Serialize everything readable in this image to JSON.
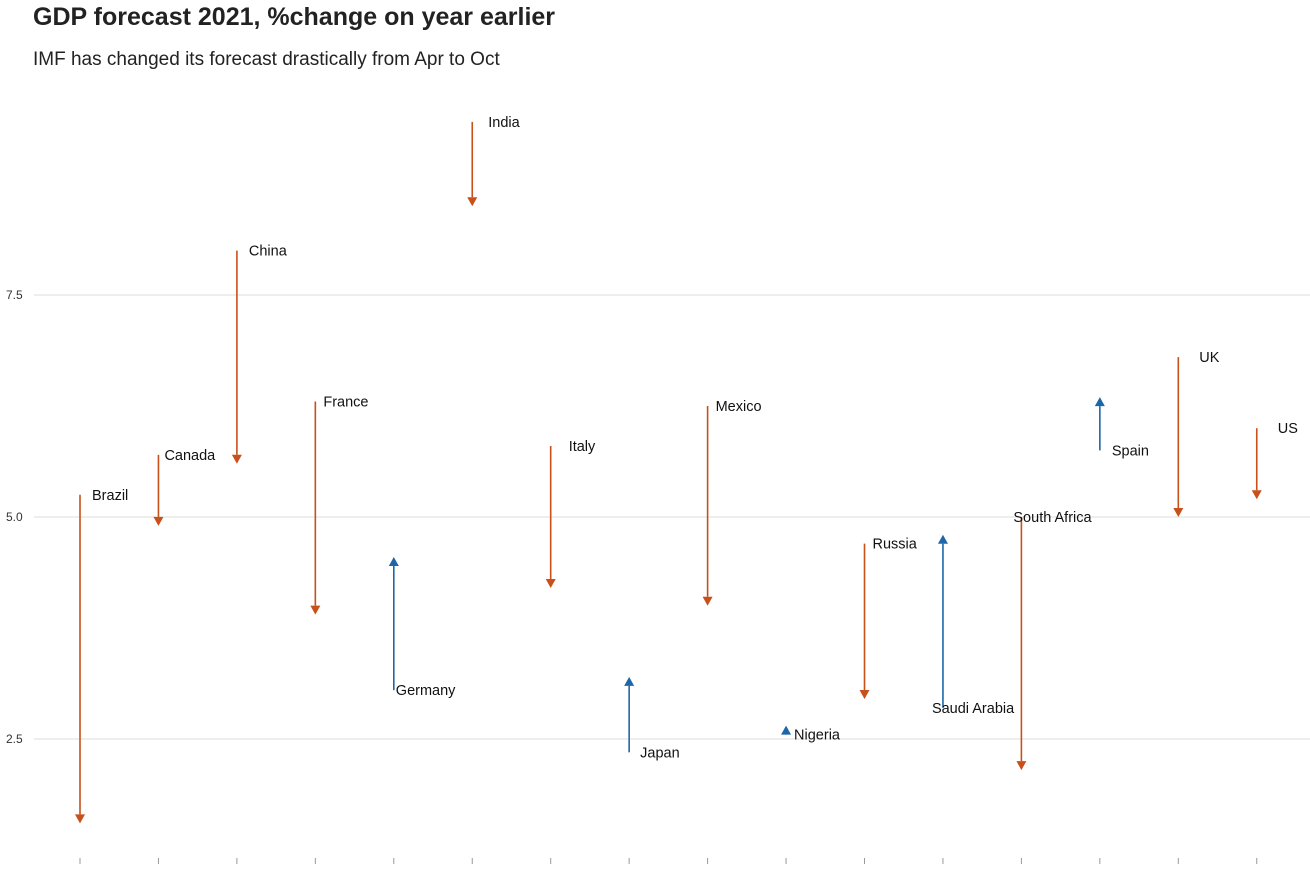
{
  "title": "GDP forecast 2021, %change on year earlier",
  "subtitle": "IMF has changed its forecast drastically from Apr to Oct",
  "colors": {
    "down": "#C8501A",
    "up": "#1F66A8",
    "grid": "#DDDDDD"
  },
  "chart_data": {
    "type": "arrow",
    "title": "GDP forecast 2021, %change on year earlier",
    "subtitle": "IMF has changed its forecast drastically from Apr to Oct",
    "xlabel": "",
    "ylabel": "",
    "ylim": [
      1.3,
      9.7
    ],
    "yticks": [
      "2.5",
      "5.0",
      "7.5"
    ],
    "grid": true,
    "series_legend": "none",
    "categories": [
      "Brazil",
      "Canada",
      "China",
      "France",
      "Germany",
      "India",
      "Italy",
      "Japan",
      "Mexico",
      "Nigeria",
      "Russia",
      "Saudi Arabia",
      "South Africa",
      "Spain",
      "UK",
      "US"
    ],
    "points": [
      {
        "country": "Brazil",
        "from": 5.25,
        "to": 1.55
      },
      {
        "country": "Canada",
        "from": 5.7,
        "to": 4.9
      },
      {
        "country": "China",
        "from": 8.0,
        "to": 5.6
      },
      {
        "country": "France",
        "from": 6.3,
        "to": 3.9
      },
      {
        "country": "Germany",
        "from": 3.05,
        "to": 4.55
      },
      {
        "country": "India",
        "from": 9.45,
        "to": 8.5
      },
      {
        "country": "Italy",
        "from": 5.8,
        "to": 4.2
      },
      {
        "country": "Japan",
        "from": 2.35,
        "to": 3.2
      },
      {
        "country": "Mexico",
        "from": 6.25,
        "to": 4.0
      },
      {
        "country": "Nigeria",
        "from": 2.55,
        "to": 2.65
      },
      {
        "country": "Russia",
        "from": 4.7,
        "to": 2.95
      },
      {
        "country": "Saudi Arabia",
        "from": 2.85,
        "to": 4.8
      },
      {
        "country": "South Africa",
        "from": 5.0,
        "to": 2.15
      },
      {
        "country": "Spain",
        "from": 5.75,
        "to": 6.35
      },
      {
        "country": "UK",
        "from": 6.8,
        "to": 5.0
      },
      {
        "country": "US",
        "from": 6.0,
        "to": 5.2
      }
    ]
  }
}
